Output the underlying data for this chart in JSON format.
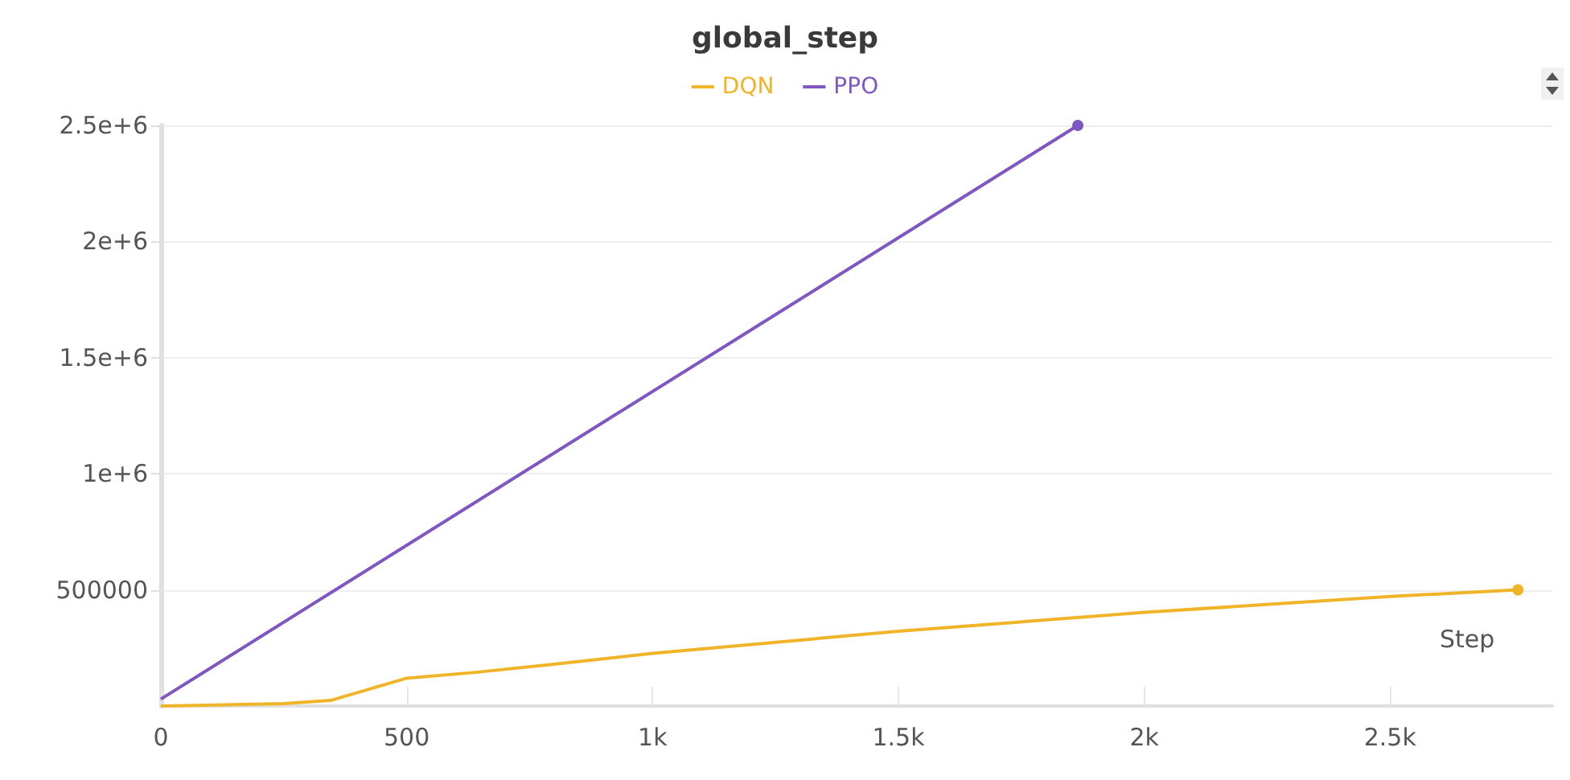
{
  "chart_data": {
    "type": "line",
    "title": "global_step",
    "xlabel": "Step",
    "x": [
      0,
      250,
      345,
      500,
      640,
      800,
      1000,
      1500,
      2000,
      2500,
      2760
    ],
    "series": [
      {
        "name": "DQN",
        "color": "#f0b429",
        "values": [
          0,
          10000,
          24000,
          120000,
          145000,
          180000,
          227000,
          322000,
          403000,
          472000,
          500000
        ]
      },
      {
        "name": "PPO",
        "color": "#7e57c2",
        "x": [
          0,
          1865
        ],
        "values": [
          30000,
          2500000
        ]
      }
    ],
    "xlim": [
      0,
      2830
    ],
    "xticks": [
      0,
      500,
      {
        "value": 1000,
        "label": "1k"
      },
      {
        "value": 1500,
        "label": "1.5k"
      },
      {
        "value": 2000,
        "label": "2k"
      },
      {
        "value": 2500,
        "label": "2.5k"
      }
    ],
    "ylim": [
      0,
      2500000
    ],
    "yticks": [
      500000,
      {
        "value": 1000000,
        "label": "1e+6"
      },
      {
        "value": 1500000,
        "label": "1.5e+6"
      },
      {
        "value": 2000000,
        "label": "2e+6"
      },
      {
        "value": 2500000,
        "label": "2.5e+6"
      }
    ],
    "grid": "y",
    "legend": "top"
  }
}
